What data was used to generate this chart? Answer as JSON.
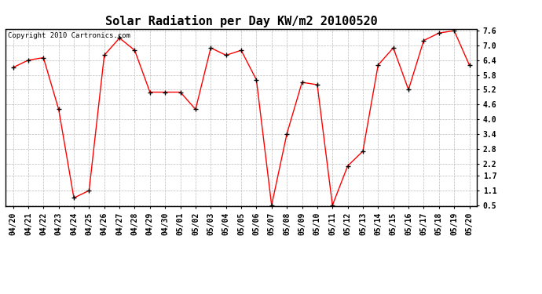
{
  "title": "Solar Radiation per Day KW/m2 20100520",
  "copyright_text": "Copyright 2010 Cartronics.com",
  "labels": [
    "04/20",
    "04/21",
    "04/22",
    "04/23",
    "04/24",
    "04/25",
    "04/26",
    "04/27",
    "04/28",
    "04/29",
    "04/30",
    "05/01",
    "05/02",
    "05/03",
    "05/04",
    "05/05",
    "05/06",
    "05/07",
    "05/08",
    "05/09",
    "05/10",
    "05/11",
    "05/12",
    "05/13",
    "05/14",
    "05/15",
    "05/16",
    "05/17",
    "05/18",
    "05/19",
    "05/20"
  ],
  "values": [
    6.1,
    6.4,
    6.5,
    4.4,
    0.8,
    1.1,
    6.6,
    7.3,
    6.8,
    5.1,
    5.1,
    5.1,
    4.4,
    6.9,
    6.6,
    6.8,
    5.6,
    0.5,
    3.4,
    5.5,
    5.4,
    0.5,
    2.1,
    2.7,
    6.2,
    6.9,
    5.2,
    7.2,
    7.5,
    7.6,
    6.2
  ],
  "line_color": "#ff0000",
  "marker_color": "#000000",
  "background_color": "#ffffff",
  "grid_color": "#bbbbbb",
  "yticks": [
    0.5,
    1.1,
    1.7,
    2.2,
    2.8,
    3.4,
    4.0,
    4.6,
    5.2,
    5.8,
    6.4,
    7.0,
    7.6
  ],
  "ylim": [
    0.5,
    7.6
  ],
  "title_fontsize": 11,
  "tick_fontsize": 7,
  "copyright_fontsize": 6.5
}
